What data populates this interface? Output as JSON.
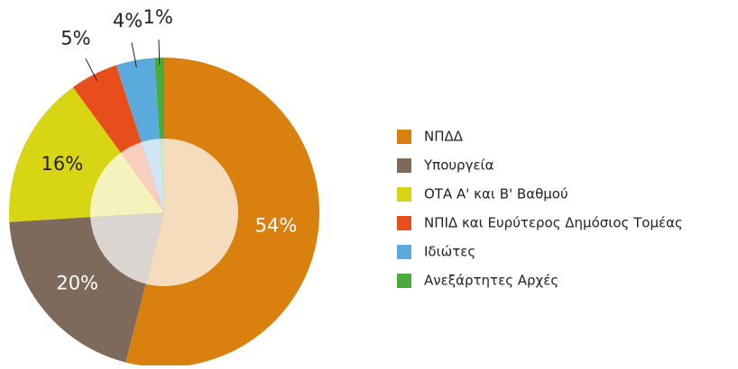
{
  "chart_data": {
    "type": "pie",
    "categories": [
      "ΝΠΔΔ",
      "Υπουργεία",
      "ΟΤΑ Α' και Β' Βαθμού",
      "ΝΠΙΔ και Ευρύτερος Δημόσιος Τομέας",
      "Ιδιώτες",
      "Ανεξάρτητες Αρχές"
    ],
    "values": [
      54,
      20,
      16,
      5,
      4,
      1
    ],
    "value_labels": [
      "54%",
      "20%",
      "16%",
      "5%",
      "4%",
      "1%"
    ],
    "colors": [
      "#d9800f",
      "#7d6a5a",
      "#d8d514",
      "#e84e1b",
      "#5aaade",
      "#4aab3c"
    ]
  }
}
